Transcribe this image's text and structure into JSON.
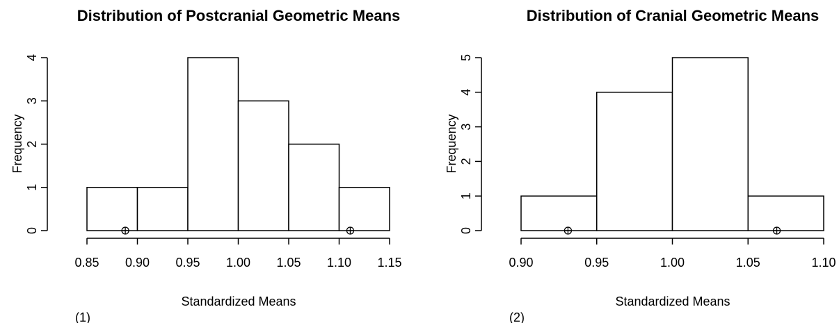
{
  "chart_data": [
    {
      "type": "bar",
      "title": "Distribution of Postcranial Geometric Means",
      "xlabel": "Standardized Means",
      "ylabel": "Frequency",
      "panel_label": "(1)",
      "bins": [
        [
          0.85,
          0.9
        ],
        [
          0.9,
          0.95
        ],
        [
          0.95,
          1.0
        ],
        [
          1.0,
          1.05
        ],
        [
          1.05,
          1.1
        ],
        [
          1.1,
          1.15
        ]
      ],
      "values": [
        1,
        1,
        4,
        3,
        2,
        1
      ],
      "xlim": [
        0.85,
        1.15
      ],
      "ylim": [
        0,
        4
      ],
      "x_ticks": [
        "0.85",
        "0.90",
        "0.95",
        "1.00",
        "1.05",
        "1.10",
        "1.15"
      ],
      "y_ticks": [
        "0",
        "1",
        "2",
        "3",
        "4"
      ],
      "markers_x": [
        0.888,
        1.111
      ],
      "grid": false
    },
    {
      "type": "bar",
      "title": "Distribution of Cranial Geometric Means",
      "xlabel": "Standardized Means",
      "ylabel": "Frequency",
      "panel_label": "(2)",
      "bins": [
        [
          0.9,
          0.95
        ],
        [
          0.95,
          1.0
        ],
        [
          1.0,
          1.05
        ],
        [
          1.05,
          1.1
        ]
      ],
      "values": [
        1,
        4,
        5,
        1
      ],
      "xlim": [
        0.9,
        1.1
      ],
      "ylim": [
        0,
        5
      ],
      "x_ticks": [
        "0.90",
        "0.95",
        "1.00",
        "1.05",
        "1.10"
      ],
      "y_ticks": [
        "0",
        "1",
        "2",
        "3",
        "4",
        "5"
      ],
      "markers_x": [
        0.931,
        1.069
      ],
      "grid": false
    }
  ]
}
